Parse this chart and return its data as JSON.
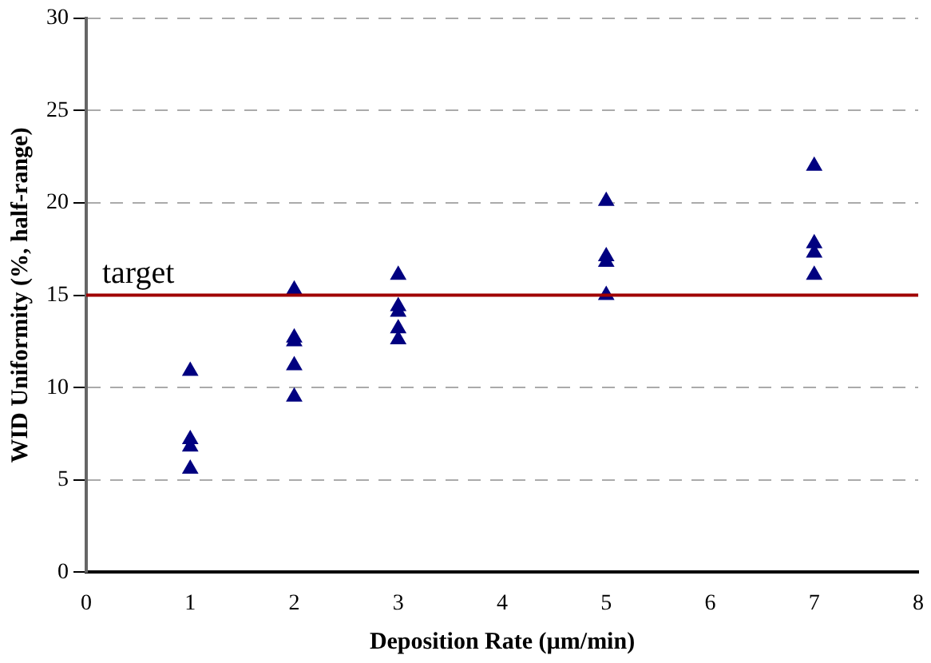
{
  "chart_data": {
    "type": "scatter",
    "xlabel": "Deposition Rate (µm/min)",
    "ylabel": "WID Uniformity (%, half-range)",
    "x": [
      1,
      1,
      1,
      1,
      2,
      2,
      2,
      2,
      2,
      3,
      3,
      3,
      3,
      3,
      5,
      5,
      5,
      5,
      7,
      7,
      7,
      7
    ],
    "series": [
      {
        "color": "#000080",
        "values": [
          10.9,
          7.2,
          6.8,
          5.6,
          15.3,
          12.7,
          12.5,
          11.2,
          9.5,
          16.1,
          14.4,
          14.1,
          13.2,
          12.6,
          20.1,
          17.1,
          16.8,
          15.0,
          22.0,
          17.8,
          17.3,
          16.1
        ]
      }
    ],
    "marker": "triangle",
    "xlim": [
      0,
      8
    ],
    "xticks": [
      0,
      1,
      2,
      3,
      4,
      5,
      6,
      7,
      8
    ],
    "ylim": [
      0,
      30
    ],
    "yticks": [
      0,
      5,
      10,
      15,
      20,
      25,
      30
    ],
    "grid": "y",
    "legend": false,
    "ref_lines": [
      {
        "axis": "y",
        "value": 15,
        "label": "target",
        "color": "#a00000"
      }
    ]
  }
}
